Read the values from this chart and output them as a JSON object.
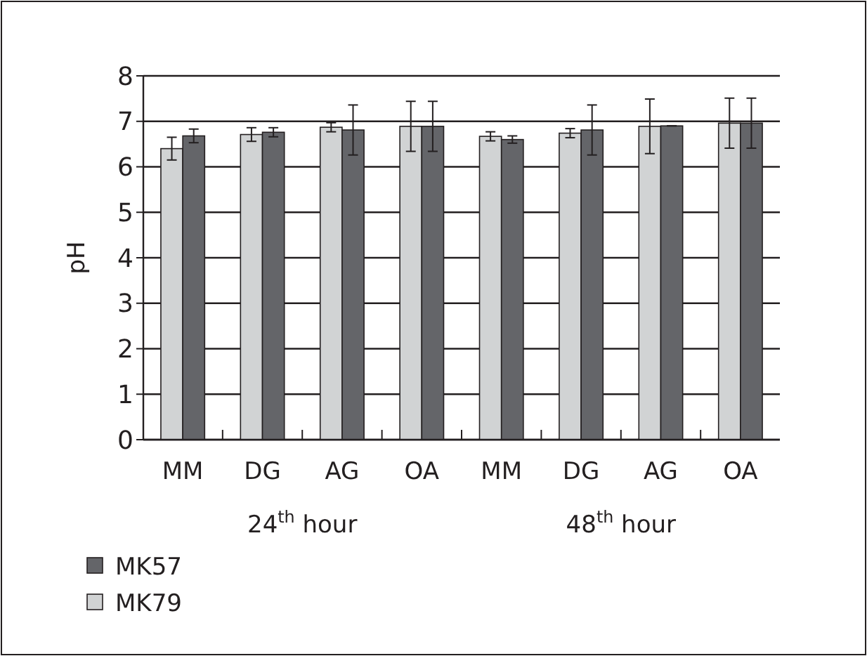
{
  "chart_data": {
    "type": "bar",
    "ylabel": "pH",
    "categories": [
      "MM",
      "DG",
      "AG",
      "OA",
      "MM",
      "DG",
      "AG",
      "OA"
    ],
    "series": [
      {
        "name": "MK79",
        "color": "#d1d3d4",
        "values": [
          6.4,
          6.71,
          6.87,
          6.89,
          6.67,
          6.74,
          6.89,
          6.96
        ],
        "errors": [
          0.25,
          0.15,
          0.1,
          0.55,
          0.1,
          0.1,
          0.6,
          0.55
        ]
      },
      {
        "name": "MK57",
        "color": "#646569",
        "values": [
          6.68,
          6.76,
          6.81,
          6.89,
          6.6,
          6.81,
          6.9,
          6.96
        ],
        "errors": [
          0.15,
          0.1,
          0.55,
          0.55,
          0.08,
          0.55,
          0,
          0.55
        ]
      }
    ],
    "ylim": [
      0,
      8
    ],
    "yticks": [
      0,
      1,
      2,
      3,
      4,
      5,
      6,
      7,
      8
    ],
    "grid": "y",
    "legend": "bottom left",
    "annotations": [
      "24$^{th}$ hour",
      "48$^{th}$ hour"
    ]
  }
}
